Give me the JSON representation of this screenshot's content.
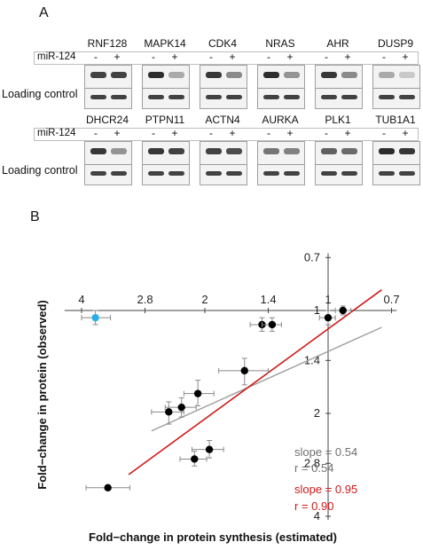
{
  "panel_a": {
    "label": "A",
    "row1": {
      "genes": [
        "RNF128",
        "MAPK14",
        "CDK4",
        "NRAS",
        "AHR",
        "DUSP9"
      ],
      "treatment_label": "miR-124",
      "treatment_signs": [
        "-",
        "+"
      ],
      "loading_label": "Loading control",
      "band_intensity": [
        [
          0.85,
          0.85
        ],
        [
          0.95,
          0.35
        ],
        [
          0.9,
          0.5
        ],
        [
          0.95,
          0.45
        ],
        [
          0.9,
          0.5
        ],
        [
          0.35,
          0.2
        ]
      ]
    },
    "row2": {
      "genes": [
        "DHCR24",
        "PTPN11",
        "ACTN4",
        "AURKA",
        "PLK1",
        "TUB1A1"
      ],
      "treatment_label": "miR-124",
      "treatment_signs": [
        "-",
        "+"
      ],
      "loading_label": "Loading control",
      "band_intensity": [
        [
          0.9,
          0.45
        ],
        [
          0.9,
          0.85
        ],
        [
          0.85,
          0.8
        ],
        [
          0.6,
          0.55
        ],
        [
          0.7,
          0.65
        ],
        [
          0.95,
          0.9
        ]
      ]
    }
  },
  "panel_b": {
    "label": "B",
    "chart_data": {
      "type": "scatter",
      "xlabel": "Fold−change in protein synthesis (estimated)",
      "ylabel": "Fold−change in protein (observed)",
      "scale": "reciprocal",
      "xlim": [
        4.4,
        0.68
      ],
      "ylim": [
        0.68,
        4.1
      ],
      "x_ticks": [
        "4",
        "2.8",
        "2",
        "1.4",
        "1",
        "0.7"
      ],
      "x_tick_values": [
        4,
        2.8,
        2,
        1.4,
        1,
        0.7
      ],
      "y_ticks": [
        "0.7",
        "1",
        "1.4",
        "2",
        "2.8",
        "4"
      ],
      "y_tick_values": [
        0.7,
        1,
        1.4,
        2,
        2.8,
        4
      ],
      "points": [
        {
          "x": 3.7,
          "y": 1.05,
          "xerr": [
            4.0,
            3.4
          ],
          "yerr": [
            1.0,
            1.1
          ],
          "highlight": true
        },
        {
          "x": 0.92,
          "y": 1.0,
          "xerr": [
            0.96,
            0.88
          ],
          "yerr": [
            0.97,
            1.03
          ]
        },
        {
          "x": 1.0,
          "y": 1.05,
          "xerr": [
            1.05,
            0.96
          ],
          "yerr": [
            1.0,
            1.1
          ]
        },
        {
          "x": 1.45,
          "y": 1.1,
          "xerr": [
            1.55,
            1.35
          ],
          "yerr": [
            1.05,
            1.15
          ]
        },
        {
          "x": 1.37,
          "y": 1.1,
          "xerr": [
            1.45,
            1.3
          ],
          "yerr": [
            1.05,
            1.15
          ]
        },
        {
          "x": 1.6,
          "y": 1.5,
          "xerr": [
            1.85,
            1.4
          ],
          "yerr": [
            1.38,
            1.65
          ]
        },
        {
          "x": 2.08,
          "y": 1.75,
          "xerr": [
            2.25,
            1.9
          ],
          "yerr": [
            1.6,
            1.9
          ]
        },
        {
          "x": 2.28,
          "y": 1.92,
          "xerr": [
            2.5,
            2.1
          ],
          "yerr": [
            1.8,
            2.05
          ]
        },
        {
          "x": 2.45,
          "y": 1.98,
          "xerr": [
            2.7,
            2.25
          ],
          "yerr": [
            1.85,
            2.15
          ]
        },
        {
          "x": 1.95,
          "y": 2.55,
          "xerr": [
            2.15,
            1.8
          ],
          "yerr": [
            2.4,
            2.7
          ]
        },
        {
          "x": 2.12,
          "y": 2.72,
          "xerr": [
            2.3,
            1.98
          ],
          "yerr": [
            2.58,
            2.85
          ]
        },
        {
          "x": 3.45,
          "y": 3.3,
          "xerr": [
            3.9,
            3.05
          ],
          "yerr": [
            3.3,
            3.3
          ]
        }
      ],
      "fits": [
        {
          "name": "slope = 0.54",
          "color": "#9e9e9e",
          "x": [
            2.7,
            0.74
          ],
          "y": [
            2.25,
            1.12
          ]
        },
        {
          "name": "slope = 0.95",
          "color": "#d11a1a",
          "x": [
            3.07,
            0.74
          ],
          "y": [
            3.02,
            0.87
          ]
        }
      ],
      "annotations": [
        {
          "text": "slope = 0.54",
          "color": "#707070"
        },
        {
          "text": "r = 0.54",
          "color": "#707070"
        },
        {
          "text": "slope = 0.95",
          "color": "#d11a1a"
        },
        {
          "text": "r = 0.90",
          "color": "#d11a1a"
        }
      ],
      "point_color": "#000000",
      "highlight_color": "#29aee6",
      "grid": false
    }
  }
}
